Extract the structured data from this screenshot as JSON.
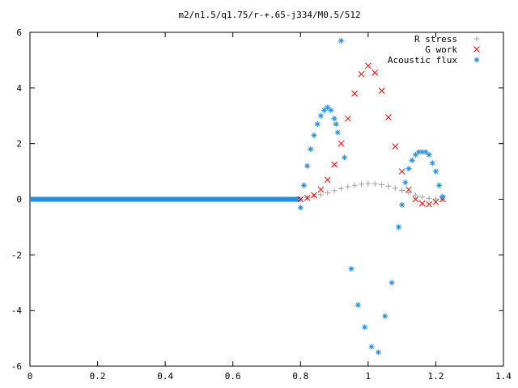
{
  "chart_data": {
    "type": "scatter",
    "title": "m2/n1.5/q1.75/r-+.65-j334/M0.5/512",
    "xlim": [
      0,
      1.4
    ],
    "ylim": [
      -6,
      6
    ],
    "xticks": [
      "0",
      "0.2",
      "0.4",
      "0.6",
      "0.8",
      "1",
      "1.2",
      "1.4"
    ],
    "yticks": [
      "6",
      "4",
      "2",
      "0",
      "-2",
      "-4",
      "-6"
    ],
    "grid": false,
    "legend_position": "top-right",
    "series": [
      {
        "name": "R stress",
        "marker": "+",
        "color": "#a0a0a0",
        "x": [
          0.8,
          0.82,
          0.84,
          0.86,
          0.88,
          0.9,
          0.92,
          0.94,
          0.96,
          0.98,
          1.0,
          1.02,
          1.04,
          1.06,
          1.08,
          1.1,
          1.12,
          1.14,
          1.16,
          1.18,
          1.2,
          1.22
        ],
        "y": [
          0.0,
          0.05,
          0.1,
          0.16,
          0.23,
          0.31,
          0.39,
          0.45,
          0.5,
          0.54,
          0.56,
          0.55,
          0.52,
          0.47,
          0.4,
          0.32,
          0.23,
          0.15,
          0.08,
          0.03,
          0.01,
          0.0
        ]
      },
      {
        "name": "G work",
        "marker": "x",
        "color": "#ff0000",
        "x": [
          0.8,
          0.82,
          0.84,
          0.86,
          0.88,
          0.9,
          0.92,
          0.94,
          0.96,
          0.98,
          1.0,
          1.02,
          1.04,
          1.06,
          1.08,
          1.1,
          1.12,
          1.14,
          1.16,
          1.18,
          1.2,
          1.22
        ],
        "y": [
          0.0,
          0.05,
          0.15,
          0.35,
          0.7,
          1.25,
          2.0,
          2.9,
          3.8,
          4.5,
          4.8,
          4.55,
          3.9,
          2.95,
          1.9,
          1.0,
          0.35,
          0.0,
          -0.15,
          -0.18,
          -0.1,
          0.0
        ]
      },
      {
        "name": "Acoustic flux",
        "marker": "*",
        "color": "#1c8ee6",
        "x": [
          0.8,
          0.81,
          0.82,
          0.83,
          0.84,
          0.85,
          0.86,
          0.87,
          0.88,
          0.89,
          0.9,
          0.905,
          0.91,
          0.92,
          0.93,
          0.95,
          0.97,
          0.99,
          1.01,
          1.03,
          1.05,
          1.07,
          1.09,
          1.1,
          1.11,
          1.12,
          1.13,
          1.14,
          1.15,
          1.16,
          1.17,
          1.18,
          1.19,
          1.2,
          1.21,
          1.22
        ],
        "y": [
          -0.3,
          0.5,
          1.2,
          1.8,
          2.3,
          2.7,
          3.0,
          3.2,
          3.3,
          3.2,
          2.9,
          2.7,
          2.4,
          5.7,
          1.5,
          -2.5,
          -3.8,
          -4.6,
          -5.3,
          -5.5,
          -4.2,
          -3.0,
          -1.0,
          -0.2,
          0.6,
          1.1,
          1.4,
          1.6,
          1.7,
          1.7,
          1.7,
          1.6,
          1.3,
          1.0,
          0.5,
          0.1
        ]
      }
    ]
  }
}
